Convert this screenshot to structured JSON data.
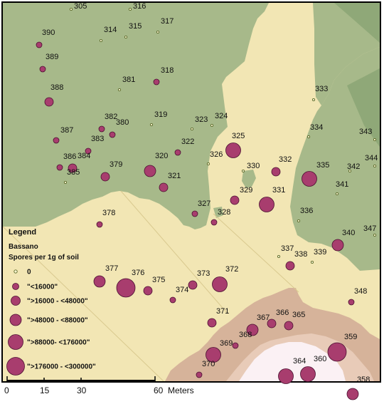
{
  "colors": {
    "forest_green": "#a7b98a",
    "forest_dark": "#8fa878",
    "field_cream": "#f2e6b4",
    "field_tan": "#ecdca4",
    "urban_brown": "#d6b39a",
    "urban_light": "#e8cbb8",
    "center_white": "#fbf1f4",
    "marker_fill": "#a83d6e",
    "marker_stroke": "#4a1030",
    "frame_border": "#000000"
  },
  "legend": {
    "title": "Legend",
    "subtitle": "Bassano",
    "variable": "Spores per 1g of soil",
    "classes": [
      {
        "label": "0",
        "size_class": 0
      },
      {
        "label": "\"<16000\"",
        "size_class": 1
      },
      {
        "label": "\">16000 - <48000\"",
        "size_class": 2
      },
      {
        "label": "\">48000 - <88000\"",
        "size_class": 3
      },
      {
        "label": "\">88000- <176000\"",
        "size_class": 4
      },
      {
        "label": "\">176000 - <300000\"",
        "size_class": 5
      }
    ]
  },
  "scale_bar": {
    "ticks": [
      "0",
      "15",
      "30",
      "60"
    ],
    "unit": "Meters"
  },
  "sites": [
    {
      "id": "305",
      "size_class": 0
    },
    {
      "id": "316",
      "size_class": 0
    },
    {
      "id": "314",
      "size_class": 0
    },
    {
      "id": "315",
      "size_class": 0
    },
    {
      "id": "317",
      "size_class": 0
    },
    {
      "id": "390",
      "size_class": 1
    },
    {
      "id": "389",
      "size_class": 1
    },
    {
      "id": "381",
      "size_class": 0
    },
    {
      "id": "318",
      "size_class": 1
    },
    {
      "id": "388",
      "size_class": 2
    },
    {
      "id": "333",
      "size_class": 0
    },
    {
      "id": "319",
      "size_class": 0
    },
    {
      "id": "382",
      "size_class": 1
    },
    {
      "id": "380",
      "size_class": 1
    },
    {
      "id": "323",
      "size_class": 0
    },
    {
      "id": "324",
      "size_class": 0
    },
    {
      "id": "387",
      "size_class": 1
    },
    {
      "id": "383",
      "size_class": 1
    },
    {
      "id": "325",
      "size_class": 4
    },
    {
      "id": "334",
      "size_class": 0
    },
    {
      "id": "343",
      "size_class": 0
    },
    {
      "id": "322",
      "size_class": 1
    },
    {
      "id": "386",
      "size_class": 1
    },
    {
      "id": "384",
      "size_class": 2
    },
    {
      "id": "385",
      "size_class": 0
    },
    {
      "id": "320",
      "size_class": 3
    },
    {
      "id": "326",
      "size_class": 0
    },
    {
      "id": "332",
      "size_class": 2
    },
    {
      "id": "379",
      "size_class": 2
    },
    {
      "id": "330",
      "size_class": 0
    },
    {
      "id": "335",
      "size_class": 4
    },
    {
      "id": "344",
      "size_class": 0
    },
    {
      "id": "342",
      "size_class": 0
    },
    {
      "id": "321",
      "size_class": 2
    },
    {
      "id": "329",
      "size_class": 2
    },
    {
      "id": "331",
      "size_class": 4
    },
    {
      "id": "341",
      "size_class": 0
    },
    {
      "id": "327",
      "size_class": 1
    },
    {
      "id": "378",
      "size_class": 1
    },
    {
      "id": "328",
      "size_class": 1
    },
    {
      "id": "336",
      "size_class": 0
    },
    {
      "id": "340",
      "size_class": 3
    },
    {
      "id": "347",
      "size_class": 0
    },
    {
      "id": "337",
      "size_class": 0
    },
    {
      "id": "338",
      "size_class": 2
    },
    {
      "id": "339",
      "size_class": 0
    },
    {
      "id": "377",
      "size_class": 3
    },
    {
      "id": "376",
      "size_class": 5
    },
    {
      "id": "375",
      "size_class": 2
    },
    {
      "id": "373",
      "size_class": 2
    },
    {
      "id": "372",
      "size_class": 4
    },
    {
      "id": "374",
      "size_class": 1
    },
    {
      "id": "348",
      "size_class": 1
    },
    {
      "id": "371",
      "size_class": 2
    },
    {
      "id": "367",
      "size_class": 3
    },
    {
      "id": "366",
      "size_class": 2
    },
    {
      "id": "365",
      "size_class": 2
    },
    {
      "id": "368",
      "size_class": 1
    },
    {
      "id": "369",
      "size_class": 4
    },
    {
      "id": "359",
      "size_class": 5
    },
    {
      "id": "370",
      "size_class": 1
    },
    {
      "id": "364",
      "size_class": 4
    },
    {
      "id": "360",
      "size_class": 4
    },
    {
      "id": "358",
      "size_class": 3
    }
  ]
}
